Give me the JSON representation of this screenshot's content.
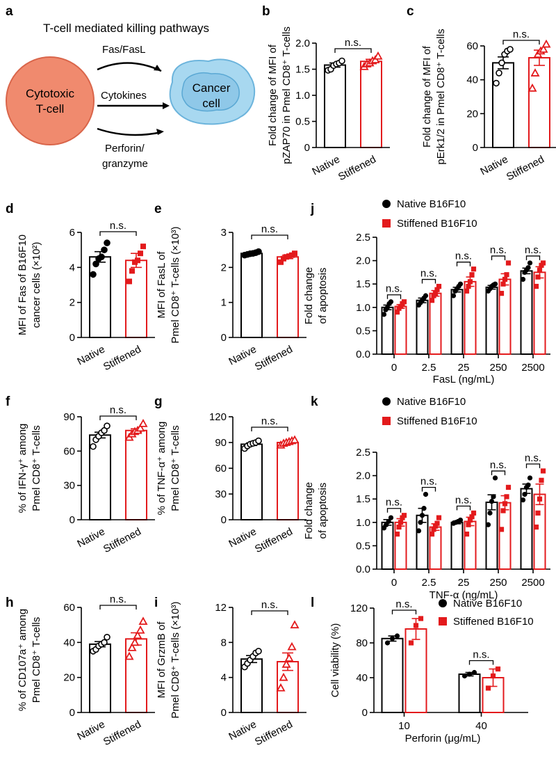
{
  "colors": {
    "native": "#000000",
    "stiffened": "#e31a1c",
    "tcell_fill": "#f08a6e",
    "tcell_stroke": "#d9654a",
    "cancer_fill": "#a8d8f0",
    "cancer_stroke": "#6cb4dc"
  },
  "schematic": {
    "letter": "a",
    "title": "T-cell mediated killing pathways",
    "tcell_label_1": "Cytotoxic",
    "tcell_label_2": "T-cell",
    "cancer_label_1": "Cancer",
    "cancer_label_2": "cell",
    "path_1": "Fas/FasL",
    "path_2": "Cytokines",
    "path_3a": "Perforin/",
    "path_3b": "granzyme"
  },
  "legend": {
    "native": "Native B16F10",
    "stiffened": "Stiffened B16F10"
  },
  "chart_data": [
    {
      "id": "b",
      "letter": "b",
      "type": "bar",
      "ylabel_1": "Fold change of MFI of",
      "ylabel_2": "pZAP70 in Pmel CD8⁺ T-cells",
      "categories": [
        "Native",
        "Stiffened"
      ],
      "values": [
        1.58,
        1.65
      ],
      "errors": [
        0.04,
        0.04
      ],
      "points": [
        [
          1.48,
          1.5,
          1.57,
          1.6,
          1.62,
          1.66
        ],
        [
          1.55,
          1.6,
          1.62,
          1.66,
          1.68,
          1.75
        ]
      ],
      "markers": [
        "circle",
        "triangle"
      ],
      "ylim": [
        0,
        2.0
      ],
      "yticks": [
        "0",
        "0.5",
        "1.0",
        "1.5",
        "2.0"
      ],
      "tickvals": [
        0,
        0.5,
        1.0,
        1.5,
        2.0
      ],
      "sig": "n.s."
    },
    {
      "id": "c",
      "letter": "c",
      "type": "bar",
      "ylabel_1": "Fold change of MFI of",
      "ylabel_2": "pErk1/2 in Pmel CD8⁺ T-cells",
      "categories": [
        "Native",
        "Stiffened"
      ],
      "values": [
        50,
        53
      ],
      "errors": [
        3.5,
        4.5
      ],
      "points": [
        [
          38,
          44,
          50,
          55,
          57,
          58
        ],
        [
          35,
          44,
          55,
          57,
          58,
          61
        ]
      ],
      "markers": [
        "circle",
        "triangle"
      ],
      "ylim": [
        0,
        60
      ],
      "yticks": [
        "0",
        "20",
        "40",
        "60"
      ],
      "tickvals": [
        0,
        20,
        40,
        60
      ],
      "sig": "n.s."
    },
    {
      "id": "d",
      "letter": "d",
      "type": "bar",
      "ylabel_1": "MFI of Fas of B16F10",
      "ylabel_2": "cancer cells (×10²)",
      "categories": [
        "Native",
        "Stiffened"
      ],
      "values": [
        4.6,
        4.4
      ],
      "errors": [
        0.3,
        0.4
      ],
      "points": [
        [
          3.6,
          4.2,
          4.5,
          4.6,
          5.0,
          5.4
        ],
        [
          3.2,
          3.8,
          4.3,
          4.4,
          4.8,
          5.2
        ]
      ],
      "markers": [
        "circle",
        "square"
      ],
      "ylim": [
        0,
        6
      ],
      "yticks": [
        "0",
        "2",
        "4",
        "6"
      ],
      "tickvals": [
        0,
        2,
        4,
        6
      ],
      "sig": "n.s."
    },
    {
      "id": "e",
      "letter": "e",
      "type": "bar",
      "ylabel_1": "MFI of FasL of",
      "ylabel_2": "Pmel CD8⁺ T-cells (×10³)",
      "categories": [
        "Native",
        "Stiffened"
      ],
      "values": [
        2.4,
        2.3
      ],
      "errors": [
        0.03,
        0.05
      ],
      "points": [
        [
          2.35,
          2.37,
          2.39,
          2.4,
          2.42,
          2.45
        ],
        [
          2.15,
          2.25,
          2.3,
          2.32,
          2.35,
          2.4
        ]
      ],
      "markers": [
        "circle",
        "square"
      ],
      "ylim": [
        0,
        3
      ],
      "yticks": [
        "0",
        "1",
        "2",
        "3"
      ],
      "tickvals": [
        0,
        1,
        2,
        3
      ],
      "sig": "n.s."
    },
    {
      "id": "f",
      "letter": "f",
      "type": "bar",
      "ylabel_1": "% of IFN-γ⁺ among",
      "ylabel_2": "Pmel CD8⁺ T-cells",
      "categories": [
        "Native",
        "Stiffened"
      ],
      "values": [
        74,
        78
      ],
      "errors": [
        2.5,
        1.5
      ],
      "points": [
        [
          64,
          70,
          73,
          76,
          78,
          82
        ],
        [
          72,
          75,
          77,
          78,
          80,
          84
        ]
      ],
      "markers": [
        "circle",
        "triangle"
      ],
      "ylim": [
        0,
        90
      ],
      "yticks": [
        "0",
        "30",
        "60",
        "90"
      ],
      "tickvals": [
        0,
        30,
        60,
        90
      ],
      "sig": "n.s."
    },
    {
      "id": "g",
      "letter": "g",
      "type": "bar",
      "ylabel_1": "% of TNF-α⁺ among",
      "ylabel_2": "Pmel CD8⁺ T-cells",
      "categories": [
        "Native",
        "Stiffened"
      ],
      "values": [
        88,
        90
      ],
      "errors": [
        1.5,
        1.0
      ],
      "points": [
        [
          83,
          86,
          88,
          89,
          90,
          92
        ],
        [
          87,
          89,
          90,
          91,
          92,
          93
        ]
      ],
      "markers": [
        "circle",
        "triangle"
      ],
      "ylim": [
        0,
        120
      ],
      "yticks": [
        "0",
        "30",
        "60",
        "90",
        "120"
      ],
      "tickvals": [
        0,
        30,
        60,
        90,
        120
      ],
      "sig": "n.s."
    },
    {
      "id": "h",
      "letter": "h",
      "type": "bar",
      "ylabel_1": "% of CD107a⁺ among",
      "ylabel_2": "Pmel CD8⁺ T-cells",
      "categories": [
        "Native",
        "Stiffened"
      ],
      "values": [
        39,
        42
      ],
      "errors": [
        1.5,
        3.5
      ],
      "points": [
        [
          35,
          36,
          38,
          39,
          40,
          43
        ],
        [
          32,
          37,
          40,
          44,
          47,
          52
        ]
      ],
      "markers": [
        "circle",
        "triangle"
      ],
      "ylim": [
        0,
        60
      ],
      "yticks": [
        "0",
        "20",
        "40",
        "60"
      ],
      "tickvals": [
        0,
        20,
        40,
        60
      ],
      "sig": "n.s."
    },
    {
      "id": "i",
      "letter": "i",
      "type": "bar",
      "ylabel_1": "MFI of GrzmB of",
      "ylabel_2": "Pmel CD8⁺ T-cells (×10³)",
      "categories": [
        "Native",
        "Stiffened"
      ],
      "values": [
        6.1,
        5.8
      ],
      "errors": [
        0.4,
        1.0
      ],
      "points": [
        [
          5.2,
          5.6,
          6.0,
          6.4,
          6.8,
          7.0
        ],
        [
          2.8,
          4.0,
          5.5,
          6.2,
          7.5,
          10.0
        ]
      ],
      "markers": [
        "circle",
        "triangle"
      ],
      "ylim": [
        0,
        12
      ],
      "yticks": [
        "0",
        "4",
        "8",
        "12"
      ],
      "tickvals": [
        0,
        4,
        8,
        12
      ],
      "sig": "n.s."
    },
    {
      "id": "j",
      "letter": "j",
      "type": "bar",
      "ylabel_1": "Fold change",
      "ylabel_2": "of apoptosis",
      "xlabel": "FasL (ng/mL)",
      "categories": [
        "0",
        "2.5",
        "25",
        "250",
        "2500"
      ],
      "series": [
        {
          "name": "Native B16F10",
          "values": [
            1.0,
            1.15,
            1.38,
            1.43,
            1.78
          ],
          "errors": [
            0.05,
            0.05,
            0.05,
            0.04,
            0.06
          ],
          "points": [
            [
              0.85,
              0.95,
              1.0,
              1.08,
              1.12
            ],
            [
              1.05,
              1.1,
              1.15,
              1.2,
              1.25
            ],
            [
              1.25,
              1.35,
              1.4,
              1.45,
              1.5
            ],
            [
              1.35,
              1.4,
              1.45,
              1.48,
              1.5
            ],
            [
              1.6,
              1.75,
              1.8,
              1.85,
              1.95
            ]
          ]
        },
        {
          "name": "Stiffened B16F10",
          "values": [
            1.02,
            1.3,
            1.55,
            1.6,
            1.75
          ],
          "errors": [
            0.04,
            0.06,
            0.1,
            0.12,
            0.12
          ],
          "points": [
            [
              0.9,
              0.98,
              1.02,
              1.08,
              1.12
            ],
            [
              1.15,
              1.25,
              1.3,
              1.38,
              1.45
            ],
            [
              1.35,
              1.45,
              1.55,
              1.7,
              1.82
            ],
            [
              1.3,
              1.5,
              1.6,
              1.7,
              1.95
            ],
            [
              1.45,
              1.65,
              1.8,
              1.9,
              1.95
            ]
          ]
        }
      ],
      "markers": [
        "circle",
        "square"
      ],
      "ylim": [
        0,
        2.5
      ],
      "yticks": [
        "0.0",
        "0.5",
        "1.0",
        "1.5",
        "2.0",
        "2.5"
      ],
      "tickvals": [
        0,
        0.5,
        1.0,
        1.5,
        2.0,
        2.5
      ],
      "sig": "n.s."
    },
    {
      "id": "k",
      "letter": "k",
      "type": "bar",
      "ylabel_1": "Fold change",
      "ylabel_2": "of apoptosis",
      "xlabel": "TNF-α (ng/mL)",
      "categories": [
        "0",
        "2.5",
        "25",
        "250",
        "2500"
      ],
      "series": [
        {
          "name": "Native B16F10",
          "values": [
            1.0,
            1.15,
            1.0,
            1.43,
            1.72
          ],
          "errors": [
            0.06,
            0.15,
            0.03,
            0.16,
            0.1
          ],
          "points": [
            [
              0.88,
              0.95,
              1.02,
              1.1
            ],
            [
              0.82,
              1.0,
              1.15,
              1.3,
              1.6
            ],
            [
              0.98,
              1.0,
              1.02,
              1.05
            ],
            [
              0.95,
              1.2,
              1.45,
              1.55,
              1.95
            ],
            [
              1.48,
              1.6,
              1.75,
              1.8,
              1.95
            ]
          ]
        },
        {
          "name": "Stiffened B16F10",
          "values": [
            1.0,
            0.9,
            1.02,
            1.42,
            1.6
          ],
          "errors": [
            0.08,
            0.07,
            0.09,
            0.15,
            0.22
          ],
          "points": [
            [
              0.75,
              0.9,
              1.0,
              1.1,
              1.15
            ],
            [
              0.75,
              0.85,
              0.92,
              0.98,
              1.1
            ],
            [
              0.75,
              0.95,
              1.05,
              1.12,
              1.2
            ],
            [
              0.85,
              1.25,
              1.4,
              1.55,
              1.75
            ],
            [
              0.9,
              1.2,
              1.5,
              1.9,
              2.1
            ]
          ]
        }
      ],
      "markers": [
        "circle",
        "square"
      ],
      "ylim": [
        0,
        2.5
      ],
      "yticks": [
        "0.0",
        "0.5",
        "1.0",
        "1.5",
        "2.0",
        "2.5"
      ],
      "tickvals": [
        0,
        0.5,
        1.0,
        1.5,
        2.0,
        2.5
      ],
      "sig": "n.s."
    },
    {
      "id": "l",
      "letter": "l",
      "type": "bar",
      "ylabel_1": "Cell viability (%)",
      "ylabel_2": "",
      "xlabel": "Perforin (μg/mL)",
      "categories": [
        "10",
        "40"
      ],
      "series": [
        {
          "name": "Native B16F10",
          "values": [
            85,
            44
          ],
          "errors": [
            3,
            2
          ],
          "points": [
            [
              80,
              85,
              88
            ],
            [
              42,
              44,
              46
            ]
          ]
        },
        {
          "name": "Stiffened B16F10",
          "values": [
            96,
            40
          ],
          "errors": [
            12,
            10
          ],
          "points": [
            [
              80,
              100,
              108
            ],
            [
              28,
              42,
              50
            ]
          ]
        }
      ],
      "markers": [
        "circle",
        "square"
      ],
      "ylim": [
        0,
        120
      ],
      "yticks": [
        "0",
        "40",
        "80",
        "120"
      ],
      "tickvals": [
        0,
        40,
        80,
        120
      ],
      "sig": "n.s."
    }
  ]
}
